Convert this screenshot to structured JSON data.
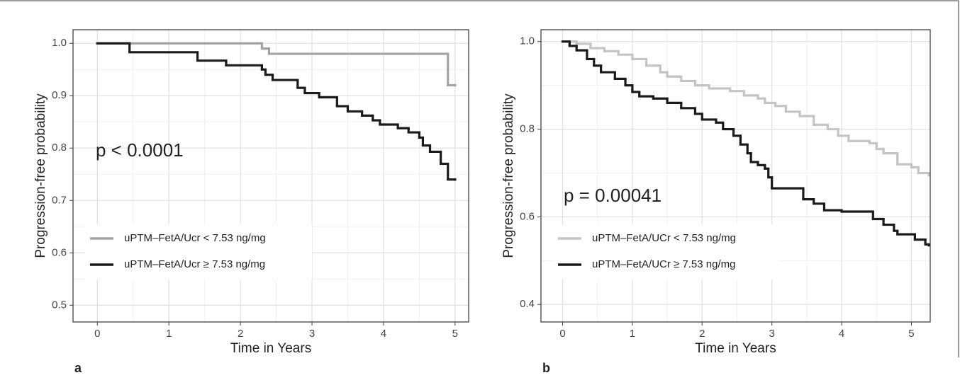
{
  "chart_data": [
    {
      "type": "step",
      "panel_label": "a",
      "x_label": "Time in Years",
      "y_label": "Progression-free probability",
      "annotation": "p < 0.0001",
      "grid": true,
      "legend": "lower left",
      "xlim": [
        -0.34,
        5.19
      ],
      "ylim": [
        0.468,
        1.026
      ],
      "xticks": [
        0,
        1,
        2,
        3,
        4,
        5
      ],
      "yticks": [
        0.5,
        0.6,
        0.7,
        0.8,
        0.9,
        {
          "value": 1,
          "label": "1.0"
        }
      ],
      "series": [
        {
          "name": "uPTM–FetA/Ucr < 7.53 ng/mg",
          "color": "#a3a3a3",
          "x": [
            0,
            2.3,
            2.4,
            4.9,
            5.0
          ],
          "values": [
            1,
            0.99,
            0.98,
            0.92,
            0.92
          ]
        },
        {
          "name": "uPTM–FetA/Ucr ≥ 7.53 ng/mg",
          "color": "#1a1a1a",
          "x": [
            0,
            0.45,
            1.4,
            1.8,
            2.3,
            2.35,
            2.45,
            2.8,
            2.9,
            3.1,
            3.35,
            3.5,
            3.7,
            3.85,
            3.95,
            4.2,
            4.35,
            4.5,
            4.55,
            4.65,
            4.8,
            4.9,
            5.0
          ],
          "values": [
            1,
            0.983,
            0.967,
            0.958,
            0.95,
            0.94,
            0.93,
            0.915,
            0.905,
            0.897,
            0.88,
            0.87,
            0.862,
            0.853,
            0.845,
            0.838,
            0.83,
            0.82,
            0.805,
            0.793,
            0.77,
            0.74,
            0.74
          ]
        }
      ]
    },
    {
      "type": "step",
      "panel_label": "b",
      "x_label": "Time in Years",
      "y_label": "Progression-free probability",
      "annotation": "p = 0.00041",
      "grid": true,
      "legend": "lower left",
      "xlim": [
        -0.31,
        5.27
      ],
      "ylim": [
        0.36,
        1.027
      ],
      "xticks": [
        0,
        1,
        2,
        3,
        4,
        5
      ],
      "yticks": [
        0.4,
        0.6,
        0.8,
        {
          "value": 1,
          "label": "1.0"
        }
      ],
      "series": [
        {
          "name": "uPTM–FetA/UCr < 7.53 ng/mg",
          "color": "#c4c4c4",
          "x": [
            0,
            0.2,
            0.4,
            0.6,
            0.8,
            1.0,
            1.2,
            1.4,
            1.5,
            1.7,
            1.9,
            2.1,
            2.4,
            2.6,
            2.8,
            2.9,
            3.05,
            3.2,
            3.4,
            3.6,
            3.8,
            3.95,
            4.1,
            4.4,
            4.5,
            4.6,
            4.8,
            5.0,
            5.1,
            5.25
          ],
          "values": [
            1,
            0.995,
            0.985,
            0.978,
            0.97,
            0.96,
            0.945,
            0.93,
            0.92,
            0.91,
            0.9,
            0.893,
            0.887,
            0.877,
            0.87,
            0.86,
            0.853,
            0.84,
            0.83,
            0.81,
            0.8,
            0.785,
            0.773,
            0.768,
            0.755,
            0.745,
            0.72,
            0.713,
            0.7,
            0.695
          ]
        },
        {
          "name": "uPTM–FetA/UCr ≥ 7.53 ng/mg",
          "color": "#1a1a1a",
          "x": [
            0,
            0.1,
            0.2,
            0.35,
            0.45,
            0.55,
            0.75,
            0.9,
            1.0,
            1.1,
            1.3,
            1.5,
            1.7,
            1.9,
            2.0,
            2.2,
            2.3,
            2.45,
            2.55,
            2.65,
            2.7,
            2.8,
            2.9,
            2.95,
            3.0,
            3.45,
            3.6,
            3.75,
            4.0,
            4.45,
            4.6,
            4.75,
            4.8,
            5.05,
            5.2,
            5.25
          ],
          "values": [
            1,
            0.99,
            0.98,
            0.96,
            0.945,
            0.93,
            0.915,
            0.9,
            0.885,
            0.875,
            0.87,
            0.86,
            0.848,
            0.835,
            0.822,
            0.815,
            0.8,
            0.785,
            0.765,
            0.745,
            0.725,
            0.718,
            0.71,
            0.69,
            0.665,
            0.64,
            0.63,
            0.615,
            0.612,
            0.595,
            0.582,
            0.568,
            0.56,
            0.548,
            0.537,
            0.535
          ]
        }
      ]
    }
  ]
}
